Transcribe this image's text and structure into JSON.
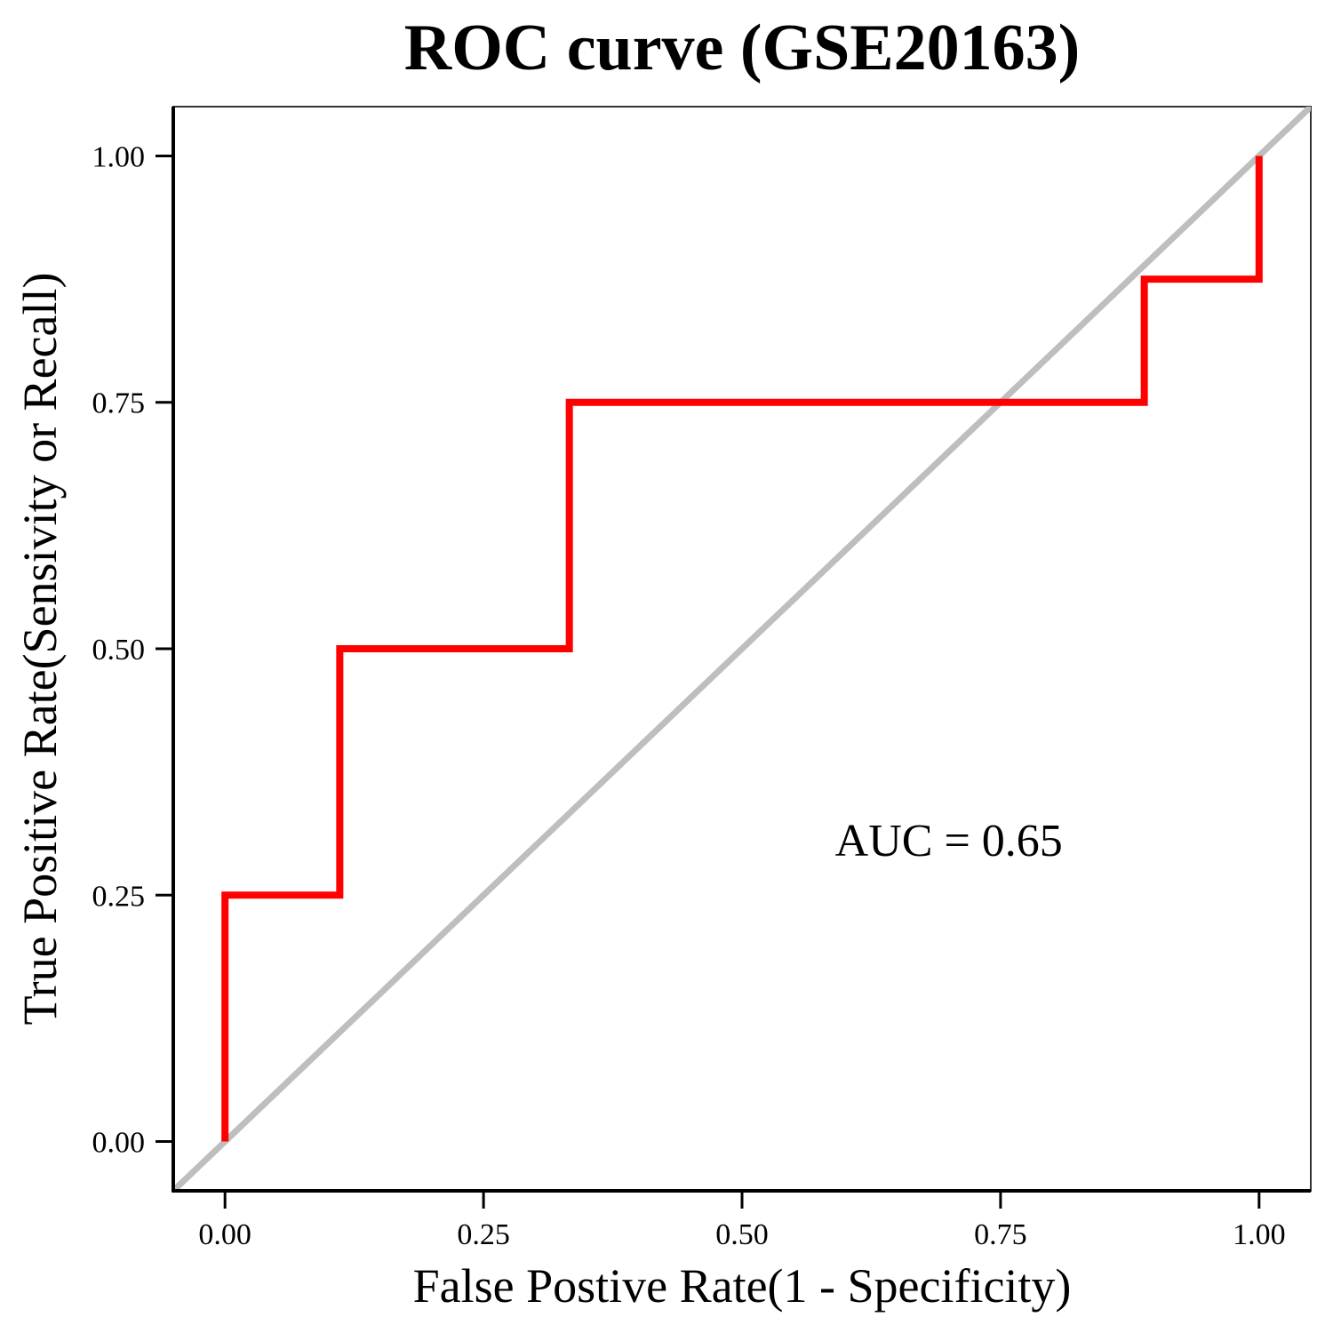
{
  "chart_data": {
    "type": "line",
    "title": "ROC curve (GSE20163)",
    "xlabel": "False Postive Rate(1 - Specificity)",
    "ylabel": "True Positive Rate(Sensivity or Recall)",
    "xlim": [
      -0.05,
      1.05
    ],
    "ylim": [
      -0.05,
      1.05
    ],
    "x_ticks": [
      0,
      0.25,
      0.5,
      0.75,
      1
    ],
    "x_tick_labels": [
      "0.00",
      "0.25",
      "0.50",
      "0.75",
      "1.00"
    ],
    "y_ticks": [
      0,
      0.25,
      0.5,
      0.75,
      1
    ],
    "y_tick_labels": [
      "0.00",
      "0.25",
      "0.50",
      "0.75",
      "1.00"
    ],
    "grid": false,
    "series": [
      {
        "color": "#ff0000",
        "x": [
          0,
          0,
          0.111,
          0.111,
          0.333,
          0.333,
          0.889,
          0.889,
          1,
          1
        ],
        "y": [
          0,
          0.25,
          0.25,
          0.5,
          0.5,
          0.75,
          0.75,
          0.875,
          0.875,
          1
        ]
      }
    ],
    "reference_line": {
      "color": "#bebebe",
      "x": [
        -0.05,
        1.05
      ],
      "y": [
        -0.05,
        1.05
      ]
    },
    "annotations": [
      {
        "text": "AUC = 0.65",
        "x": 0.7,
        "y": 0.29
      }
    ]
  }
}
